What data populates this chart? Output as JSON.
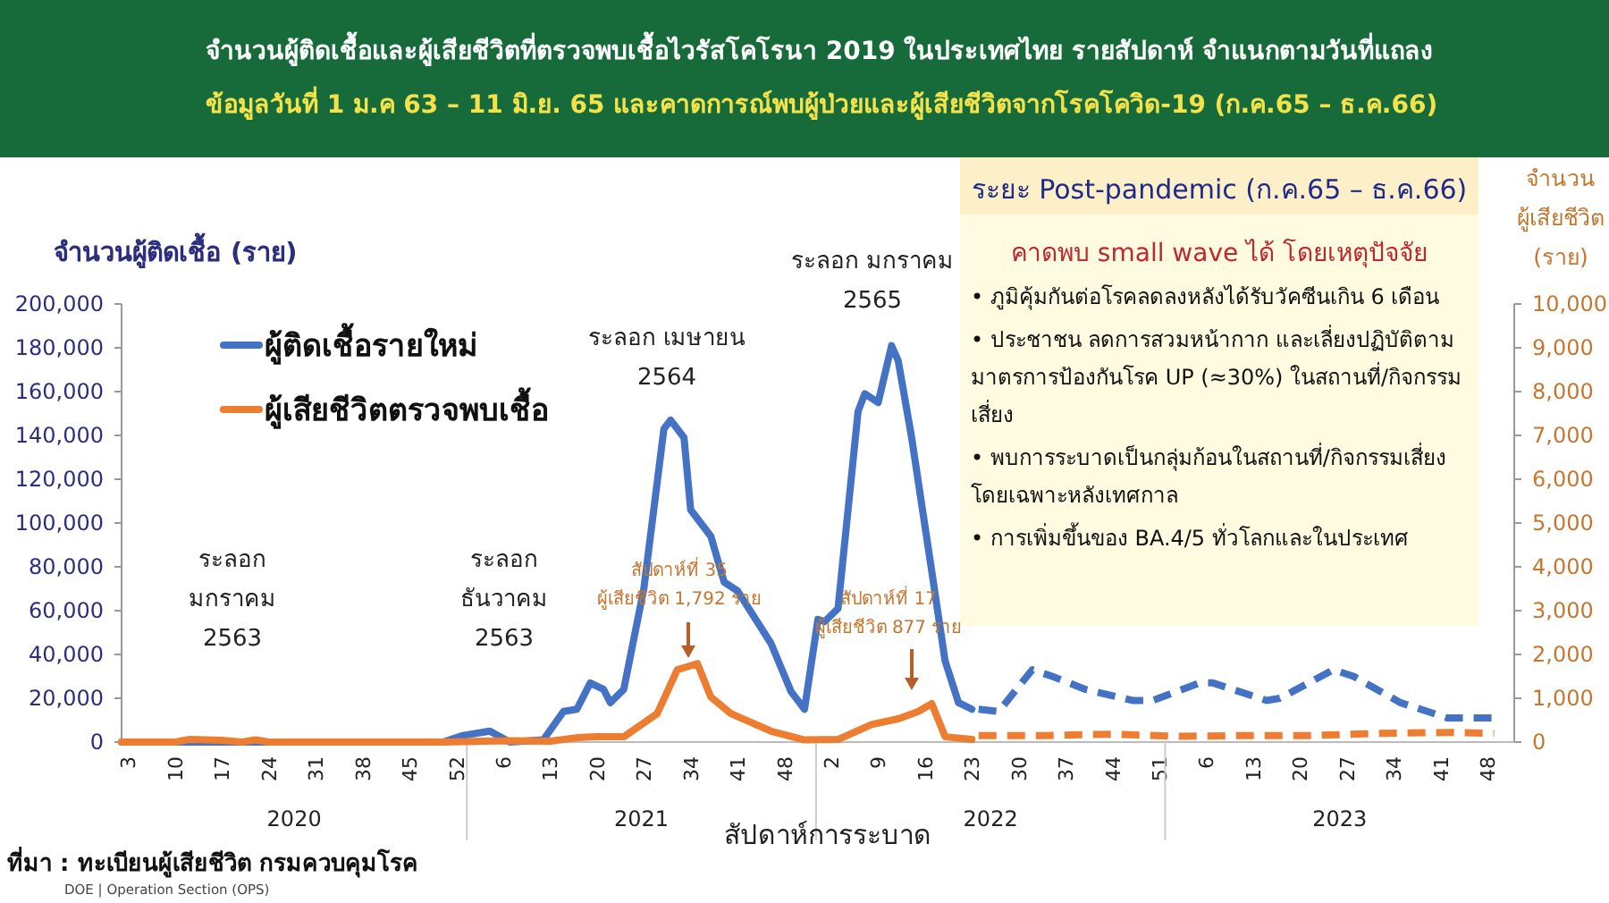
{
  "chart_data": {
    "type": "line",
    "title": "จำนวนผู้ติดเชื้อและผู้เสียชีวิตที่ตรวจพบเชื้อไวรัสโคโรนา 2019 ในประเทศไทย รายสัปดาห์ จำแนกตามวันที่แถลง",
    "subtitle": "ข้อมูลวันที่ 1 ม.ค 63 – 11 มิ.ย. 65 และคาดการณ์พบผู้ป่วยและผู้เสียชีวิตจากโรคโควิด-19 (ก.ค.65 – ธ.ค.66)",
    "xlabel": "สัปดาห์การระบาด",
    "ylabel": "จำนวนผู้ติดเชื้อ (ราย)",
    "y2label": "จำนวน ผู้เสียชีวิต (ราย)",
    "xlim": [
      "2020-01-06",
      "2024-01-01"
    ],
    "ylim": [
      0,
      200000
    ],
    "y2lim": [
      0,
      10000
    ],
    "xticks": [
      {
        "value": "2020-01-13",
        "label": "3"
      },
      {
        "value": "2020-03-02",
        "label": "10"
      },
      {
        "value": "2020-04-20",
        "label": "17"
      },
      {
        "value": "2020-06-08",
        "label": "24"
      },
      {
        "value": "2020-07-27",
        "label": "31"
      },
      {
        "value": "2020-09-14",
        "label": "38"
      },
      {
        "value": "2020-11-02",
        "label": "45"
      },
      {
        "value": "2020-12-21",
        "label": "52"
      },
      {
        "value": "2021-02-08",
        "label": "6"
      },
      {
        "value": "2021-03-29",
        "label": "13"
      },
      {
        "value": "2021-05-17",
        "label": "20"
      },
      {
        "value": "2021-07-05",
        "label": "27"
      },
      {
        "value": "2021-08-23",
        "label": "34"
      },
      {
        "value": "2021-10-11",
        "label": "41"
      },
      {
        "value": "2021-11-29",
        "label": "48"
      },
      {
        "value": "2022-01-17",
        "label": "2"
      },
      {
        "value": "2022-03-07",
        "label": "9"
      },
      {
        "value": "2022-04-25",
        "label": "16"
      },
      {
        "value": "2022-06-13",
        "label": "23"
      },
      {
        "value": "2022-08-01",
        "label": "30"
      },
      {
        "value": "2022-09-19",
        "label": "37"
      },
      {
        "value": "2022-11-07",
        "label": "44"
      },
      {
        "value": "2022-12-26",
        "label": "51"
      },
      {
        "value": "2023-02-13",
        "label": "6"
      },
      {
        "value": "2023-04-03",
        "label": "13"
      },
      {
        "value": "2023-05-22",
        "label": "20"
      },
      {
        "value": "2023-07-10",
        "label": "27"
      },
      {
        "value": "2023-08-28",
        "label": "34"
      },
      {
        "value": "2023-10-16",
        "label": "41"
      },
      {
        "value": "2023-12-04",
        "label": "48"
      }
    ],
    "yticks": [
      {
        "value": 0,
        "label": "0"
      },
      {
        "value": 20000,
        "label": "20,000"
      },
      {
        "value": 40000,
        "label": "40,000"
      },
      {
        "value": 60000,
        "label": "60,000"
      },
      {
        "value": 80000,
        "label": "80,000"
      },
      {
        "value": 100000,
        "label": "100,000"
      },
      {
        "value": 120000,
        "label": "120,000"
      },
      {
        "value": 140000,
        "label": "140,000"
      },
      {
        "value": 160000,
        "label": "160,000"
      },
      {
        "value": 180000,
        "label": "180,000"
      },
      {
        "value": 200000,
        "label": "200,000"
      }
    ],
    "y2ticks": [
      {
        "value": 0,
        "label": "0"
      },
      {
        "value": 1000,
        "label": "1,000"
      },
      {
        "value": 2000,
        "label": "2,000"
      },
      {
        "value": 3000,
        "label": "3,000"
      },
      {
        "value": 4000,
        "label": "4,000"
      },
      {
        "value": 5000,
        "label": "5,000"
      },
      {
        "value": 6000,
        "label": "6,000"
      },
      {
        "value": 7000,
        "label": "7,000"
      },
      {
        "value": 8000,
        "label": "8,000"
      },
      {
        "value": 9000,
        "label": "9,000"
      },
      {
        "value": 10000,
        "label": "10,000"
      }
    ],
    "legend": "top left",
    "grid": false,
    "series": [
      {
        "name": "ผู้ติดเชื้อรายใหม่",
        "color": "#4472c4",
        "line_style": "solid",
        "x": [
          "2020-01-06",
          "2020-12-07",
          "2020-12-28",
          "2021-01-25",
          "2021-02-15",
          "2021-03-22",
          "2021-04-12",
          "2021-04-26",
          "2021-05-10",
          "2021-05-24",
          "2021-05-31",
          "2021-06-14",
          "2021-07-05",
          "2021-07-26",
          "2021-08-02",
          "2021-08-16",
          "2021-08-23",
          "2021-09-13",
          "2021-09-27",
          "2021-10-11",
          "2021-11-15",
          "2021-12-06",
          "2021-12-20",
          "2022-01-03",
          "2022-01-10",
          "2022-01-24",
          "2022-02-14",
          "2022-02-21",
          "2022-03-07",
          "2022-03-21",
          "2022-03-28",
          "2022-04-11",
          "2022-05-02",
          "2022-05-16",
          "2022-05-30",
          "2022-06-13"
        ],
        "values": [
          0,
          0,
          3000,
          5000,
          0,
          1000,
          14000,
          15000,
          27000,
          24000,
          18000,
          24000,
          70000,
          143000,
          147000,
          139000,
          106000,
          94000,
          73000,
          69000,
          45000,
          23000,
          15000,
          56000,
          55000,
          61000,
          151000,
          159000,
          155000,
          181000,
          174000,
          139000,
          78000,
          37000,
          18000,
          15000
        ]
      },
      {
        "name": "ผู้เสียชีวิตตรวจพบเชื้อ",
        "color": "#ed7d31",
        "line_style": "solid",
        "axis": "y2",
        "x": [
          "2020-01-06",
          "2020-03-02",
          "2020-03-16",
          "2020-04-20",
          "2020-05-11",
          "2020-05-25",
          "2020-06-08",
          "2020-12-07",
          "2021-01-18",
          "2021-02-15",
          "2021-03-29",
          "2021-04-26",
          "2021-05-17",
          "2021-06-14",
          "2021-07-19",
          "2021-08-09",
          "2021-08-30",
          "2021-09-13",
          "2021-10-04",
          "2021-11-15",
          "2021-12-20",
          "2022-01-24",
          "2022-02-28",
          "2022-03-28",
          "2022-04-18",
          "2022-05-02",
          "2022-05-16",
          "2022-06-13"
        ],
        "values": [
          0,
          0,
          60,
          40,
          0,
          50,
          0,
          0,
          20,
          30,
          20,
          100,
          120,
          120,
          650,
          1650,
          1792,
          1030,
          650,
          250,
          50,
          60,
          400,
          530,
          700,
          877,
          120,
          60
        ]
      },
      {
        "color": "#4472c4",
        "line_style": "dashed",
        "x": [
          "2022-06-20",
          "2022-07-11",
          "2022-08-15",
          "2022-09-05",
          "2022-10-10",
          "2022-11-28",
          "2022-12-19",
          "2023-02-06",
          "2023-02-20",
          "2023-04-17",
          "2023-05-01",
          "2023-06-26",
          "2023-07-17",
          "2023-09-04",
          "2023-10-23",
          "2023-12-11"
        ],
        "values": [
          15000,
          14000,
          33000,
          30000,
          24000,
          19000,
          19000,
          27000,
          27000,
          19000,
          20000,
          33000,
          30000,
          18000,
          11000,
          11000
        ]
      },
      {
        "color": "#ed7d31",
        "line_style": "dashed",
        "axis": "y2",
        "x": [
          "2022-06-20",
          "2022-08-29",
          "2022-11-07",
          "2023-01-16",
          "2023-03-27",
          "2023-06-05",
          "2023-08-14",
          "2023-10-23",
          "2023-12-11"
        ],
        "values": [
          150,
          150,
          180,
          130,
          150,
          150,
          200,
          220,
          200
        ]
      }
    ],
    "annotations": [
      "ระลอก มกราคม 2563",
      "ระลอก ธันวาคม 2563",
      "ระลอก เมษายน 2564",
      "ระลอก มกราคม 2565",
      "สัปดาห์ที่ 35 ผู้เสียชีวิต 1,792 ราย",
      "สัปดาห์ที่ 17 ผู้เสียชีวิต 877 ราย",
      "ระยะ Post-pandemic (ก.ค.65 – ธ.ค.66)",
      "คาดพบ small wave ได้ โดยเหตุปัจจัย",
      "• ภูมิคุ้มกันต่อโรคลดลงหลังได้รับวัคซีนเกิน 6 เดือน",
      "• ประชาชน ลดการสวมหน้ากาก และเลี่ยงปฏิบัติตามมาตรการป้องกันโรค UP (≈30%) ในสถานที่/กิจกรรมเสี่ยง",
      "• พบการระบาดเป็นกลุ่มก้อนในสถานที่/กิจกรรมเสี่ยง โดยเฉพาะหลังเทศกาล",
      "• การเพิ่มขึ้นของ BA.4/5 ทั่วโลกและในประเทศ",
      "2020",
      "2021",
      "2022",
      "2023",
      "ที่มา : ทะเบียนผู้เสียชีวิต กรมควบคุมโรค",
      "DOE | Operation Section (OPS)"
    ]
  }
}
